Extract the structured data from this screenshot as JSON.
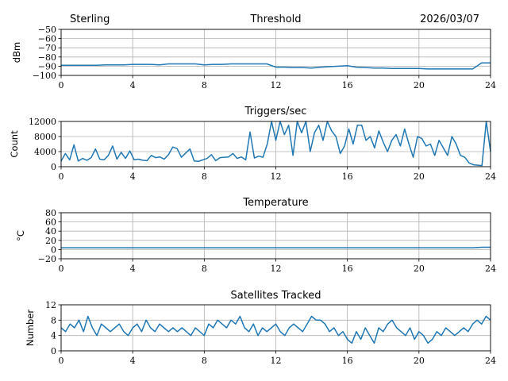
{
  "header": {
    "station": "Sterling",
    "date": "2026/03/07"
  },
  "chart_data": [
    {
      "type": "line",
      "title": "Threshold",
      "ylabel": "dBm",
      "xlabel": "",
      "xlim": [
        0,
        24
      ],
      "ylim": [
        -100,
        -50
      ],
      "xticks": [
        "0",
        "4",
        "8",
        "12",
        "16",
        "20",
        "24"
      ],
      "yticks": [
        "−50",
        "−60",
        "−70",
        "−80",
        "−90",
        "−100"
      ],
      "ytick_values": [
        -50,
        -60,
        -70,
        -80,
        -90,
        -100
      ],
      "grid": true,
      "values": [
        -89,
        -89,
        -89,
        -89,
        -89,
        -88.5,
        -88.5,
        -88.5,
        -88,
        -88,
        -88,
        -88.5,
        -87.5,
        -87.5,
        -87.5,
        -87.5,
        -88.5,
        -88,
        -88,
        -87.5,
        -87.5,
        -87.5,
        -87.5,
        -87.5,
        -91,
        -91,
        -91.5,
        -91.5,
        -92,
        -91,
        -90.5,
        -90,
        -89.5,
        -91,
        -91.5,
        -92,
        -92,
        -92.5,
        -92.5,
        -92.5,
        -92.5,
        -93,
        -93,
        -93,
        -93,
        -93,
        -93,
        -86.5,
        -86.5
      ]
    },
    {
      "type": "line",
      "title": "Triggers/sec",
      "ylabel": "Count",
      "xlabel": "",
      "xlim": [
        0,
        24
      ],
      "ylim": [
        0,
        12000
      ],
      "xticks": [
        "0",
        "4",
        "8",
        "12",
        "16",
        "20",
        "24"
      ],
      "yticks": [
        "12000",
        "8000",
        "4000",
        "0"
      ],
      "ytick_values": [
        12000,
        8000,
        4000,
        0
      ],
      "grid": true,
      "values": [
        1500,
        3500,
        1800,
        5800,
        1500,
        2200,
        1700,
        2400,
        4700,
        2000,
        1800,
        3000,
        5500,
        2000,
        3800,
        2200,
        4200,
        1800,
        2000,
        1700,
        1600,
        3000,
        2400,
        2600,
        2000,
        3200,
        5200,
        4800,
        2500,
        3600,
        4700,
        1500,
        1400,
        1800,
        2200,
        3200,
        1600,
        2400,
        2500,
        2600,
        3500,
        2200,
        2600,
        1800,
        9200,
        2300,
        2800,
        2500,
        6000,
        12000,
        7000,
        12000,
        8500,
        11000,
        3000,
        12000,
        9000,
        12000,
        4000,
        9000,
        11000,
        7000,
        12000,
        9500,
        8000,
        3500,
        5500,
        10000,
        6000,
        11000,
        11000,
        7000,
        8000,
        5000,
        9500,
        6500,
        4000,
        7000,
        8500,
        5500,
        10000,
        6000,
        2500,
        8000,
        7500,
        5500,
        6000,
        3000,
        7000,
        5000,
        3000,
        8000,
        6000,
        3000,
        2500,
        1000,
        500,
        400,
        300,
        12000,
        4000
      ]
    },
    {
      "type": "line",
      "title": "Temperature",
      "ylabel": "°C",
      "xlabel": "",
      "xlim": [
        0,
        24
      ],
      "ylim": [
        -20,
        80
      ],
      "xticks": [
        "0",
        "4",
        "8",
        "12",
        "16",
        "20",
        "24"
      ],
      "yticks": [
        "80",
        "60",
        "40",
        "20",
        "0",
        "−20"
      ],
      "ytick_values": [
        80,
        60,
        40,
        20,
        0,
        -20
      ],
      "grid": true,
      "values": [
        4,
        4,
        4,
        4,
        4,
        4,
        4,
        4,
        4,
        4,
        4,
        4,
        4,
        4,
        4,
        4,
        4,
        4,
        4,
        4,
        4,
        4,
        4,
        4,
        4,
        4,
        4,
        4,
        4,
        4,
        4,
        4,
        4,
        4,
        4,
        4,
        4,
        4,
        4,
        4,
        4,
        4,
        4,
        4,
        4,
        4,
        4,
        5,
        5
      ]
    },
    {
      "type": "line",
      "title": "Satellites Tracked",
      "ylabel": "Number",
      "xlabel": "",
      "xlim": [
        0,
        24
      ],
      "ylim": [
        0,
        12
      ],
      "xticks": [
        "0",
        "4",
        "8",
        "12",
        "16",
        "20",
        "24"
      ],
      "yticks": [
        "12",
        "8",
        "4",
        "0"
      ],
      "ytick_values": [
        12,
        8,
        4,
        0
      ],
      "grid": true,
      "values": [
        6,
        5,
        7,
        6,
        8,
        5,
        9,
        6,
        4,
        7,
        6,
        5,
        6,
        7,
        5,
        4,
        6,
        7,
        5,
        8,
        6,
        5,
        7,
        6,
        5,
        6,
        5,
        6,
        5,
        4,
        6,
        5,
        4,
        7,
        6,
        8,
        7,
        6,
        8,
        7,
        9,
        6,
        5,
        7,
        4,
        6,
        5,
        6,
        7,
        5,
        4,
        6,
        7,
        6,
        5,
        7,
        9,
        8,
        8,
        7,
        5,
        6,
        4,
        5,
        3,
        2,
        5,
        3,
        6,
        4,
        2,
        6,
        5,
        7,
        8,
        6,
        5,
        4,
        6,
        3,
        5,
        4,
        2,
        3,
        5,
        4,
        6,
        5,
        4,
        5,
        6,
        5,
        7,
        8,
        7,
        9,
        8
      ],
      "values_note": ""
    }
  ]
}
